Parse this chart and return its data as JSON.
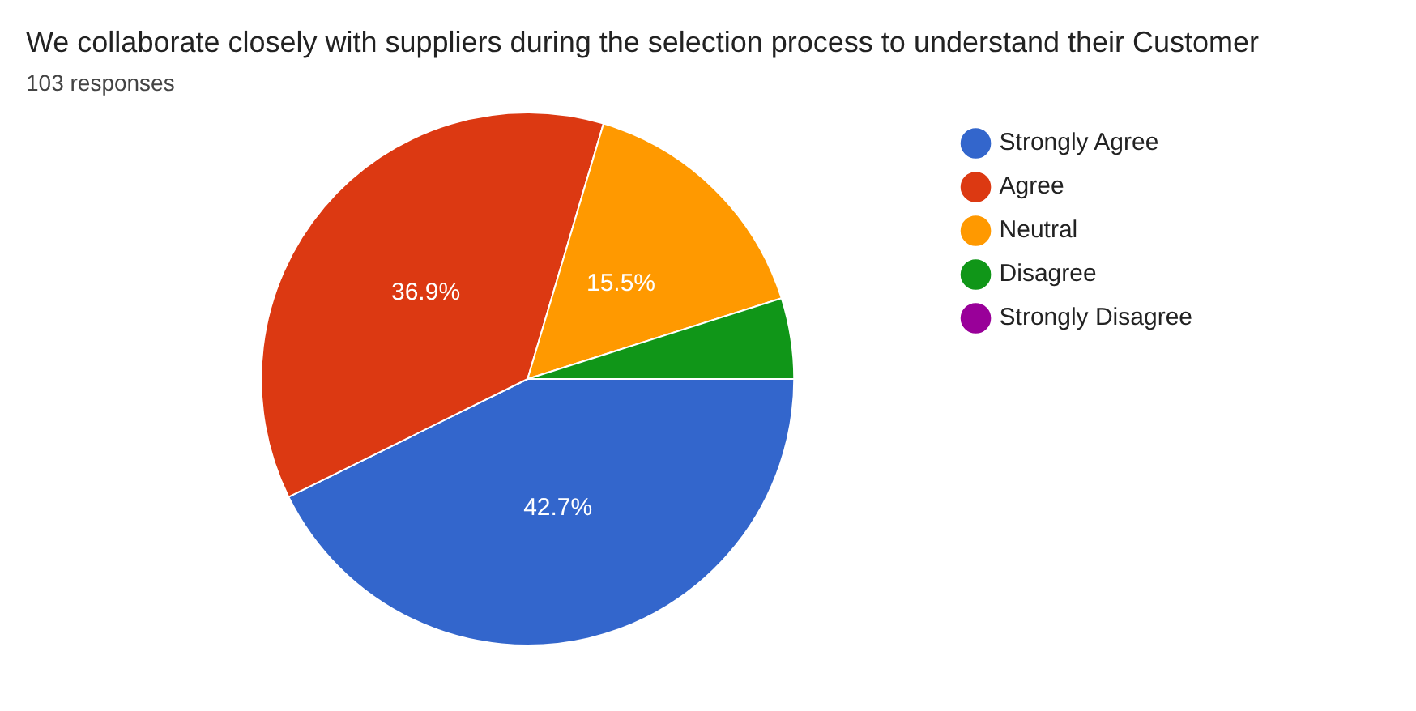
{
  "chart_data": {
    "type": "pie",
    "title": "We collaborate closely with suppliers during the selection process to understand their Customer",
    "subtitle": "103 responses",
    "categories": [
      "Strongly Agree",
      "Agree",
      "Neutral",
      "Disagree",
      "Strongly Disagree"
    ],
    "values": [
      42.7,
      36.9,
      15.5,
      4.9,
      0
    ],
    "colors": [
      "#3366cc",
      "#dc3912",
      "#ff9900",
      "#109618",
      "#990099"
    ],
    "value_labels": [
      "42.7%",
      "36.9%",
      "15.5%",
      null,
      null
    ],
    "legend": "right"
  }
}
